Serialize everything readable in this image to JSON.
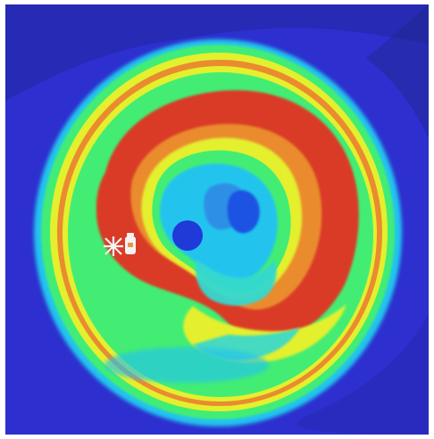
{
  "image": {
    "kind": "false-color thickness map",
    "colors": {
      "background": "#ffffff",
      "outer_field": "#2d2fcf",
      "dark_corner": "#222a8a",
      "cyan": "#22c4ee",
      "teal": "#36d8d0",
      "green": "#43ed74",
      "yellow": "#e4ef2e",
      "orange": "#ea8b2f",
      "red": "#da3a28",
      "deep_blue": "#1f3ad8",
      "marker": "#f3f3f3"
    },
    "icons": {
      "left_marker": "asterisk-x-icon",
      "right_marker": "bottle-icon"
    }
  }
}
